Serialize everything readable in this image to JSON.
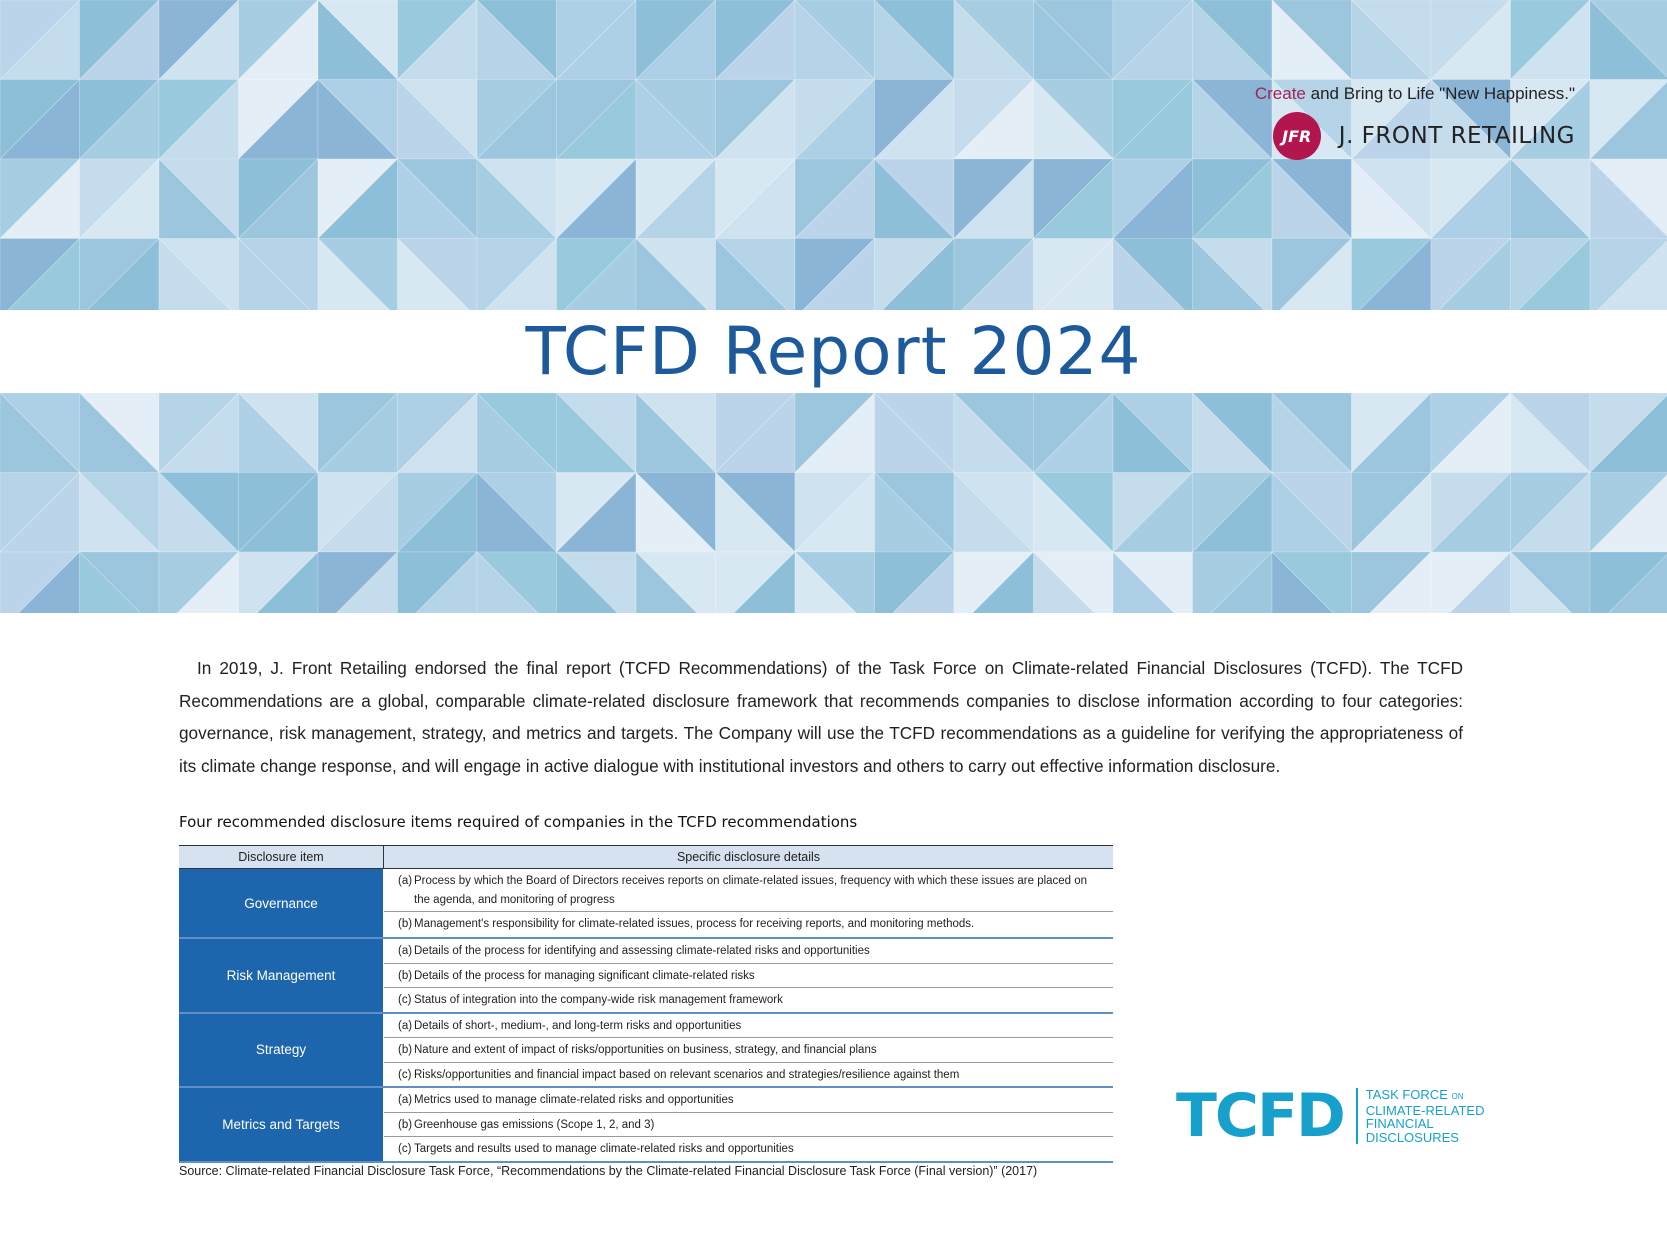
{
  "colors": {
    "title": "#1d5a9c",
    "accent": "#a1245c",
    "logo": "#b3154f",
    "table_header_bg": "#d6e2ef",
    "category_bg": "#1d66ad",
    "tcfd_blue": "#17a0cc"
  },
  "brand": {
    "tagline_accent": "Create",
    "tagline_rest": "and Bring to Life \"New Happiness.\"",
    "logo_text": "JFR",
    "company_name": "J. FRONT RETAILING"
  },
  "title": "TCFD Report 2024",
  "intro": "In 2019, J. Front Retailing endorsed the final report (TCFD Recommendations) of the Task Force on Climate-related Financial Disclosures (TCFD). The TCFD Recommendations are a global, comparable climate-related disclosure framework that recommends companies to disclose information according to four categories: governance, risk management, strategy, and metrics and targets. The Company will use the TCFD recommendations as a guideline for verifying the appropriateness of its climate change response, and will engage in active dialogue with institutional investors and others to carry out effective information disclosure.",
  "table": {
    "caption": "Four recommended disclosure items required of companies in the TCFD recommendations",
    "headers": [
      "Disclosure item",
      "Specific disclosure details"
    ],
    "groups": [
      {
        "label": "Governance",
        "rows": [
          {
            "letter": "(a)",
            "text": "Process by which the Board of Directors receives reports on climate-related issues, frequency with which these issues are placed on the agenda, and monitoring of progress"
          },
          {
            "letter": "(b)",
            "text": "Management's responsibility for climate-related issues, process for receiving reports, and monitoring methods."
          }
        ]
      },
      {
        "label": "Risk Management",
        "rows": [
          {
            "letter": "(a)",
            "text": "Details of the process for identifying and assessing climate-related risks and opportunities"
          },
          {
            "letter": "(b)",
            "text": "Details of the process for managing significant climate-related risks"
          },
          {
            "letter": "(c)",
            "text": "Status of integration into the company-wide risk management framework"
          }
        ]
      },
      {
        "label": "Strategy",
        "rows": [
          {
            "letter": "(a)",
            "text": "Details of short-, medium-, and long-term risks and opportunities"
          },
          {
            "letter": "(b)",
            "text": "Nature and extent of impact of risks/opportunities on business, strategy, and financial plans"
          },
          {
            "letter": "(c)",
            "text": "Risks/opportunities and financial impact based on relevant scenarios and strategies/resilience against them"
          }
        ]
      },
      {
        "label": "Metrics and Targets",
        "rows": [
          {
            "letter": "(a)",
            "text": "Metrics used to manage climate-related risks and opportunities"
          },
          {
            "letter": "(b)",
            "text": "Greenhouse gas emissions (Scope 1, 2, and 3)"
          },
          {
            "letter": "(c)",
            "text": "Targets and results used to manage climate-related risks and opportunities"
          }
        ]
      }
    ]
  },
  "source": "Source: Climate-related Financial Disclosure Task Force, “Recommendations by the Climate-related Financial Disclosure Task Force (Final version)” (2017)",
  "tcfd_logo": {
    "wordmark": "TCFD",
    "line1": "TASK FORCE",
    "line1_small": "ON",
    "line2": "CLIMATE-RELATED",
    "line3": "FINANCIAL",
    "line4": "DISCLOSURES"
  }
}
